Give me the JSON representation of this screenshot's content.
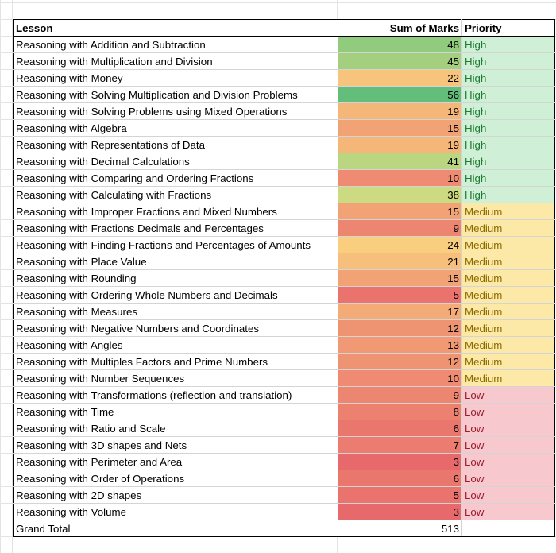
{
  "headers": {
    "lesson": "Lesson",
    "marks": "Sum of Marks",
    "priority": "Priority"
  },
  "colors": {
    "scale_low": "#e8696b",
    "scale_mid": "#fde884",
    "scale_high": "#63be7b",
    "priority_high_fill": "#cfefd6",
    "priority_high_text": "#1f7a33",
    "priority_medium_fill": "#fde9a7",
    "priority_medium_text": "#8b6b00",
    "priority_low_fill": "#f7c9cf",
    "priority_low_text": "#9b1c2c"
  },
  "rows": [
    {
      "lesson": "Reasoning with Addition and Subtraction",
      "marks": 48,
      "priority": "High"
    },
    {
      "lesson": "Reasoning with Multiplication and Division",
      "marks": 45,
      "priority": "High"
    },
    {
      "lesson": "Reasoning with Money",
      "marks": 22,
      "priority": "High"
    },
    {
      "lesson": "Reasoning with Solving Multiplication and Division Problems",
      "marks": 56,
      "priority": "High"
    },
    {
      "lesson": "Reasoning with Solving Problems using Mixed Operations",
      "marks": 19,
      "priority": "High"
    },
    {
      "lesson": "Reasoning with Algebra",
      "marks": 15,
      "priority": "High"
    },
    {
      "lesson": "Reasoning with Representations of Data",
      "marks": 19,
      "priority": "High"
    },
    {
      "lesson": "Reasoning with Decimal Calculations",
      "marks": 41,
      "priority": "High"
    },
    {
      "lesson": "Reasoning with Comparing and Ordering Fractions",
      "marks": 10,
      "priority": "High"
    },
    {
      "lesson": "Reasoning with Calculating with Fractions",
      "marks": 38,
      "priority": "High"
    },
    {
      "lesson": "Reasoning with Improper Fractions and Mixed Numbers",
      "marks": 15,
      "priority": "Medium"
    },
    {
      "lesson": "Reasoning with Fractions Decimals and Percentages",
      "marks": 9,
      "priority": "Medium"
    },
    {
      "lesson": "Reasoning with Finding Fractions and Percentages of Amounts",
      "marks": 24,
      "priority": "Medium"
    },
    {
      "lesson": "Reasoning with Place Value",
      "marks": 21,
      "priority": "Medium"
    },
    {
      "lesson": "Reasoning with Rounding",
      "marks": 15,
      "priority": "Medium"
    },
    {
      "lesson": "Reasoning with Ordering Whole Numbers and Decimals",
      "marks": 5,
      "priority": "Medium"
    },
    {
      "lesson": "Reasoning with Measures",
      "marks": 17,
      "priority": "Medium"
    },
    {
      "lesson": "Reasoning with Negative Numbers and Coordinates",
      "marks": 12,
      "priority": "Medium"
    },
    {
      "lesson": "Reasoning with Angles",
      "marks": 13,
      "priority": "Medium"
    },
    {
      "lesson": "Reasoning with Multiples Factors and Prime Numbers",
      "marks": 12,
      "priority": "Medium"
    },
    {
      "lesson": "Reasoning with Number Sequences",
      "marks": 10,
      "priority": "Medium"
    },
    {
      "lesson": "Reasoning with Transformations (reflection and translation)",
      "marks": 9,
      "priority": "Low"
    },
    {
      "lesson": "Reasoning with Time",
      "marks": 8,
      "priority": "Low"
    },
    {
      "lesson": "Reasoning with Ratio and Scale",
      "marks": 6,
      "priority": "Low"
    },
    {
      "lesson": "Reasoning with 3D shapes and Nets",
      "marks": 7,
      "priority": "Low"
    },
    {
      "lesson": "Reasoning with Perimeter and Area",
      "marks": 3,
      "priority": "Low"
    },
    {
      "lesson": "Reasoning with Order of Operations",
      "marks": 6,
      "priority": "Low"
    },
    {
      "lesson": "Reasoning with 2D shapes",
      "marks": 5,
      "priority": "Low"
    },
    {
      "lesson": "Reasoning with Volume",
      "marks": 3,
      "priority": "Low"
    }
  ],
  "total": {
    "label": "Grand Total",
    "marks": 513,
    "priority": ""
  }
}
